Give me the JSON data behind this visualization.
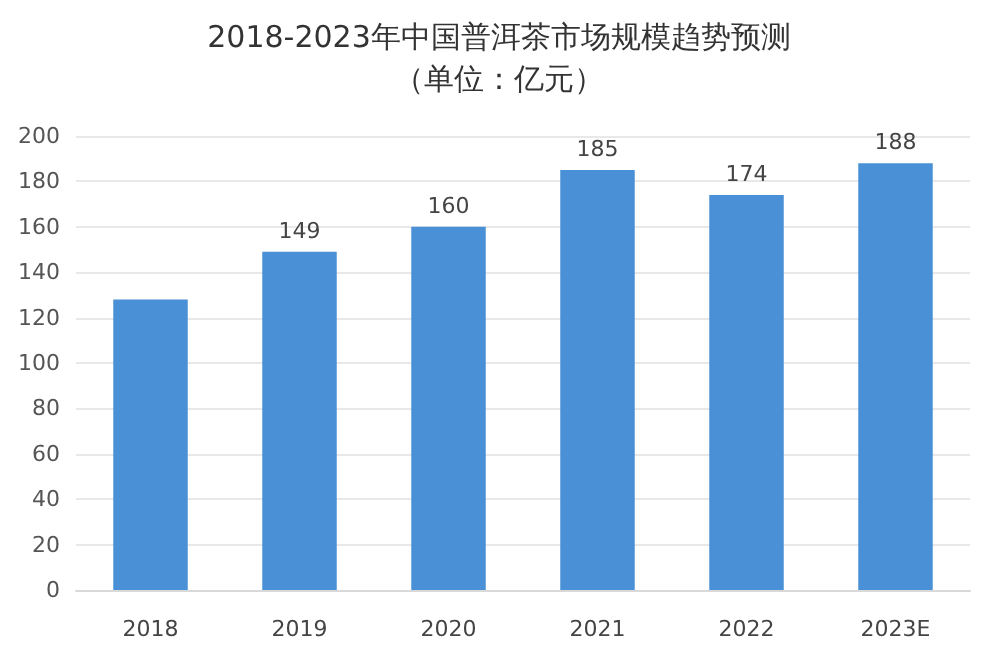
{
  "chart_data": {
    "type": "bar",
    "title": "2018-2023年中国普洱茶市场规模趋势预测",
    "subtitle": "（单位：亿元）",
    "categories": [
      "2018",
      "2019",
      "2020",
      "2021",
      "2022",
      "2023E"
    ],
    "values": [
      128,
      149,
      160,
      185,
      174,
      188
    ],
    "value_labels": [
      null,
      "149",
      "160",
      "185",
      "174",
      "188"
    ],
    "color": "#4a90d6",
    "ylim": [
      0,
      200
    ],
    "yticks": [
      0,
      20,
      40,
      60,
      80,
      100,
      120,
      140,
      160,
      180,
      200
    ],
    "grid": "y"
  }
}
